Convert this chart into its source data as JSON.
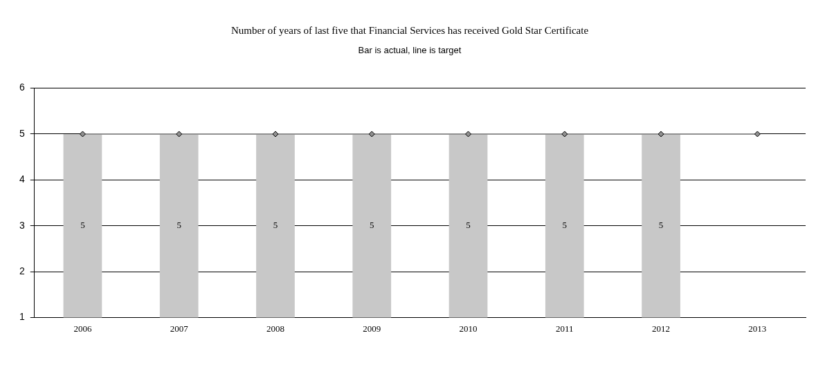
{
  "chart_data": {
    "type": "bar",
    "title": "Number of years of last five that Financial Services has received Gold Star Certificate",
    "subtitle": "Bar is actual, line is target",
    "categories": [
      "2006",
      "2007",
      "2008",
      "2009",
      "2010",
      "2011",
      "2012",
      "2013"
    ],
    "series": [
      {
        "type": "bar",
        "color": "#c8c8c8",
        "values": [
          5,
          5,
          5,
          5,
          5,
          5,
          5,
          null
        ],
        "value_labels": [
          "5",
          "5",
          "5",
          "5",
          "5",
          "5",
          "5",
          null
        ]
      },
      {
        "type": "line",
        "color": "#909090",
        "values": [
          5,
          5,
          5,
          5,
          5,
          5,
          5,
          5
        ]
      }
    ],
    "ylim": [
      1,
      6
    ],
    "yticks": [
      1,
      2,
      3,
      4,
      5,
      6
    ],
    "grid": "y",
    "legend": false,
    "marker": "diamond",
    "line_style": "solid"
  }
}
